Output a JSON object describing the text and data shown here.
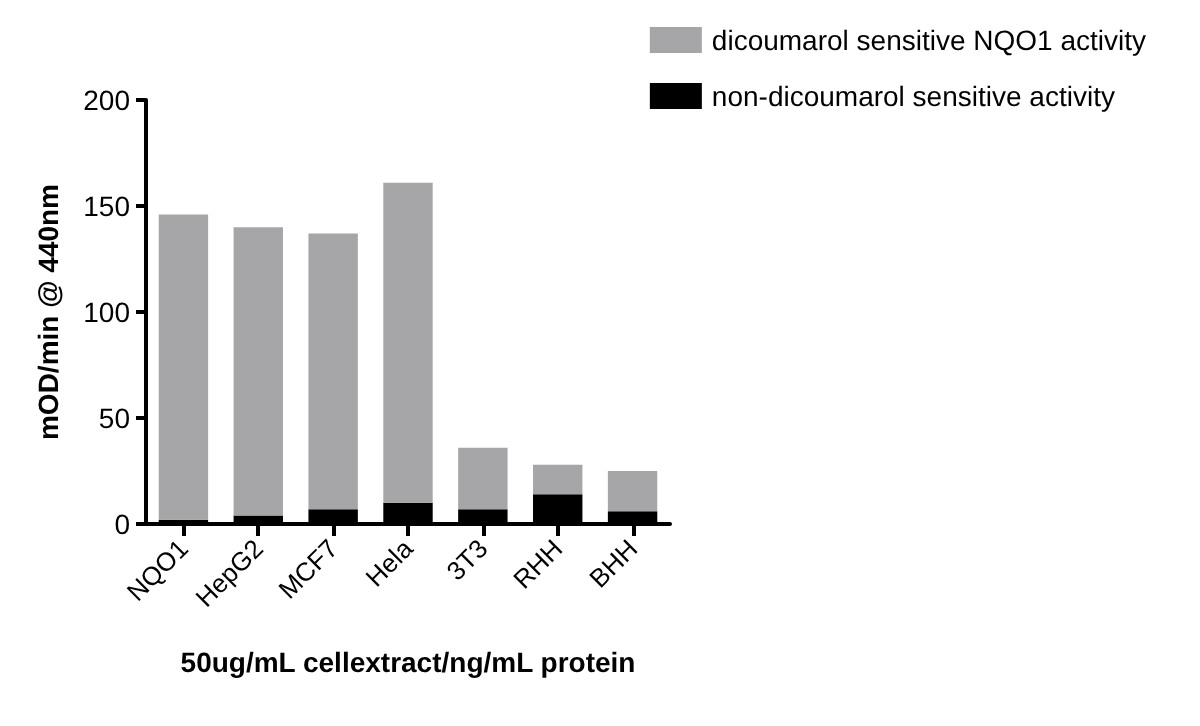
{
  "chart_data": {
    "type": "bar",
    "stacked": true,
    "xlabel": "50ug/mL cellextract/ng/mL protein",
    "ylabel": "mOD/min @ 440nm",
    "categories": [
      "NQO1",
      "HepG2",
      "MCF7",
      "Hela",
      "3T3",
      "RHH",
      "BHH"
    ],
    "series": [
      {
        "name": "non-dicoumarol sensitive activity",
        "color": "#000000",
        "values": [
          2,
          4,
          7,
          10,
          7,
          14,
          6
        ]
      },
      {
        "name": "dicoumarol sensitive NQO1 activity",
        "color": "#a6a6a8",
        "values": [
          144,
          136,
          130,
          151,
          29,
          14,
          19
        ]
      }
    ],
    "ylim": [
      0,
      200
    ],
    "yticks": [
      0,
      50,
      100,
      150,
      200
    ],
    "grid": false,
    "legend": "top right"
  }
}
